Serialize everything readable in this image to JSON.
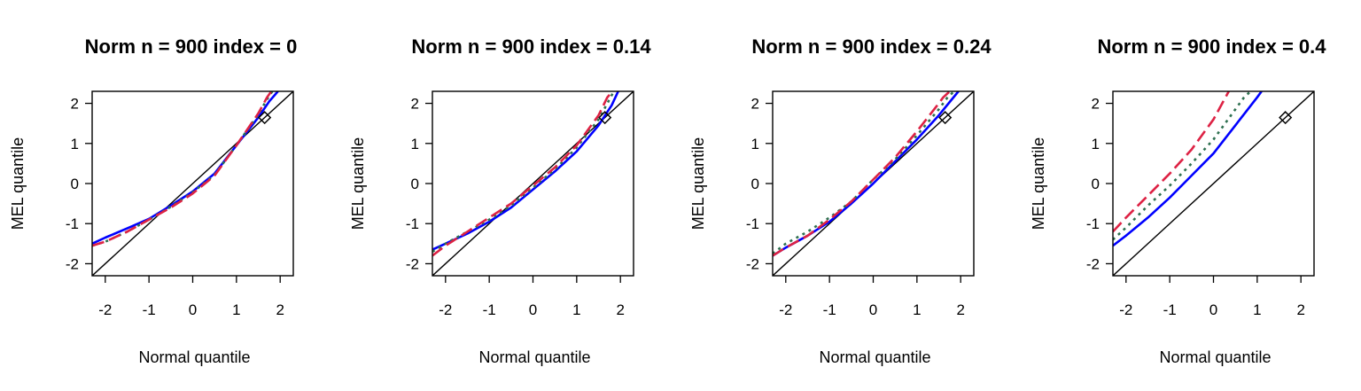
{
  "chart_data": [
    {
      "type": "line",
      "title": "Norm n = 900 index = 0",
      "xlabel": "Normal quantile",
      "ylabel": "MEL quantile",
      "xlim": [
        -2.3,
        2.3
      ],
      "ylim": [
        -2.3,
        2.3
      ],
      "xticks": [
        "-2",
        "-1",
        "0",
        "1",
        "2"
      ],
      "yticks": [
        "-2",
        "-1",
        "0",
        "1",
        "2"
      ],
      "reference_line": "y = x",
      "marker": {
        "shape": "diamond",
        "x": 1.645,
        "y": 1.645
      },
      "series": [
        {
          "color": "#0000ff",
          "dash": "solid",
          "x": [
            -2.3,
            -2.0,
            -1.5,
            -1.0,
            -0.5,
            0.0,
            0.5,
            1.0,
            1.5,
            1.75,
            1.95
          ],
          "y": [
            -1.5,
            -1.35,
            -1.12,
            -0.88,
            -0.55,
            -0.2,
            0.25,
            0.95,
            1.65,
            2.05,
            2.3
          ]
        },
        {
          "color": "#2e7050",
          "dash": "dotted",
          "x": [
            -2.3,
            -2.0,
            -1.5,
            -1.0,
            -0.5,
            0.0,
            0.5,
            1.0,
            1.5,
            1.7,
            1.82
          ],
          "y": [
            -1.55,
            -1.45,
            -1.2,
            -0.9,
            -0.58,
            -0.22,
            0.22,
            0.95,
            1.72,
            2.1,
            2.3
          ]
        },
        {
          "color": "#dd2244",
          "dash": "dashed",
          "x": [
            -2.3,
            -2.0,
            -1.5,
            -1.0,
            -0.5,
            0.0,
            0.5,
            1.0,
            1.5,
            1.7,
            1.8
          ],
          "y": [
            -1.55,
            -1.45,
            -1.2,
            -0.9,
            -0.6,
            -0.25,
            0.2,
            0.95,
            1.75,
            2.15,
            2.3
          ]
        }
      ]
    },
    {
      "type": "line",
      "title": "Norm n = 900 index = 0.14",
      "xlabel": "Normal quantile",
      "ylabel": "MEL quantile",
      "xlim": [
        -2.3,
        2.3
      ],
      "ylim": [
        -2.3,
        2.3
      ],
      "xticks": [
        "-2",
        "-1",
        "0",
        "1",
        "2"
      ],
      "yticks": [
        "-2",
        "-1",
        "0",
        "1",
        "2"
      ],
      "reference_line": "y = x",
      "marker": {
        "shape": "diamond",
        "x": 1.645,
        "y": 1.645
      },
      "series": [
        {
          "color": "#0000ff",
          "dash": "solid",
          "x": [
            -2.3,
            -2.0,
            -1.5,
            -1.0,
            -0.5,
            0.0,
            0.5,
            1.0,
            1.5,
            1.8,
            1.95
          ],
          "y": [
            -1.65,
            -1.5,
            -1.25,
            -0.95,
            -0.6,
            -0.15,
            0.3,
            0.8,
            1.45,
            1.95,
            2.3
          ]
        },
        {
          "color": "#2e7050",
          "dash": "dotted",
          "x": [
            -2.3,
            -2.0,
            -1.5,
            -1.0,
            -0.5,
            0.0,
            0.5,
            1.0,
            1.5,
            1.75,
            1.85
          ],
          "y": [
            -1.7,
            -1.5,
            -1.2,
            -0.9,
            -0.55,
            -0.1,
            0.35,
            0.9,
            1.6,
            2.1,
            2.3
          ]
        },
        {
          "color": "#dd2244",
          "dash": "dashed",
          "x": [
            -2.3,
            -2.0,
            -1.5,
            -1.0,
            -0.5,
            0.0,
            0.5,
            1.0,
            1.5,
            1.7,
            1.82
          ],
          "y": [
            -1.8,
            -1.55,
            -1.2,
            -0.85,
            -0.5,
            -0.05,
            0.4,
            0.95,
            1.7,
            2.15,
            2.3
          ]
        }
      ]
    },
    {
      "type": "line",
      "title": "Norm n = 900 index = 0.24",
      "xlabel": "Normal quantile",
      "ylabel": "MEL quantile",
      "xlim": [
        -2.3,
        2.3
      ],
      "ylim": [
        -2.3,
        2.3
      ],
      "xticks": [
        "-2",
        "-1",
        "0",
        "1",
        "2"
      ],
      "yticks": [
        "-2",
        "-1",
        "0",
        "1",
        "2"
      ],
      "reference_line": "y = x",
      "marker": {
        "shape": "diamond",
        "x": 1.645,
        "y": 1.645
      },
      "series": [
        {
          "color": "#0000ff",
          "dash": "solid",
          "x": [
            -2.3,
            -2.0,
            -1.5,
            -1.0,
            -0.5,
            0.0,
            0.5,
            1.0,
            1.5,
            1.8,
            1.95
          ],
          "y": [
            -1.8,
            -1.6,
            -1.3,
            -0.95,
            -0.5,
            0.0,
            0.55,
            1.1,
            1.7,
            2.1,
            2.3
          ]
        },
        {
          "color": "#2e7050",
          "dash": "dotted",
          "x": [
            -2.3,
            -2.0,
            -1.5,
            -1.0,
            -0.5,
            0.0,
            0.5,
            1.0,
            1.5,
            1.7,
            1.85
          ],
          "y": [
            -1.75,
            -1.5,
            -1.2,
            -0.85,
            -0.45,
            0.1,
            0.6,
            1.2,
            1.85,
            2.15,
            2.3
          ]
        },
        {
          "color": "#dd2244",
          "dash": "dashed",
          "x": [
            -2.3,
            -2.0,
            -1.5,
            -1.0,
            -0.5,
            0.0,
            0.5,
            1.0,
            1.5,
            1.6,
            1.75
          ],
          "y": [
            -1.8,
            -1.6,
            -1.3,
            -0.9,
            -0.45,
            0.1,
            0.65,
            1.3,
            2.0,
            2.15,
            2.3
          ]
        }
      ]
    },
    {
      "type": "line",
      "title": "Norm n = 900 index = 0.4",
      "xlabel": "Normal quantile",
      "ylabel": "MEL quantile",
      "xlim": [
        -2.3,
        2.3
      ],
      "ylim": [
        -2.3,
        2.3
      ],
      "xticks": [
        "-2",
        "-1",
        "0",
        "1",
        "2"
      ],
      "yticks": [
        "-2",
        "-1",
        "0",
        "1",
        "2"
      ],
      "reference_line": "y = x",
      "marker": {
        "shape": "diamond",
        "x": 1.645,
        "y": 1.645
      },
      "series": [
        {
          "color": "#0000ff",
          "dash": "solid",
          "x": [
            -2.3,
            -2.0,
            -1.5,
            -1.0,
            -0.5,
            0.0,
            0.5,
            1.0,
            1.1
          ],
          "y": [
            -1.55,
            -1.3,
            -0.85,
            -0.35,
            0.2,
            0.75,
            1.45,
            2.15,
            2.3
          ]
        },
        {
          "color": "#2e7050",
          "dash": "dotted",
          "x": [
            -2.3,
            -2.0,
            -1.5,
            -1.0,
            -0.5,
            0.0,
            0.5,
            0.7,
            0.85
          ],
          "y": [
            -1.4,
            -1.1,
            -0.55,
            -0.05,
            0.5,
            1.1,
            1.85,
            2.15,
            2.3
          ]
        },
        {
          "color": "#dd2244",
          "dash": "dashed",
          "x": [
            -2.3,
            -2.0,
            -1.5,
            -1.0,
            -0.5,
            0.0,
            0.35
          ],
          "y": [
            -1.2,
            -0.85,
            -0.3,
            0.25,
            0.85,
            1.6,
            2.3
          ]
        }
      ]
    }
  ]
}
